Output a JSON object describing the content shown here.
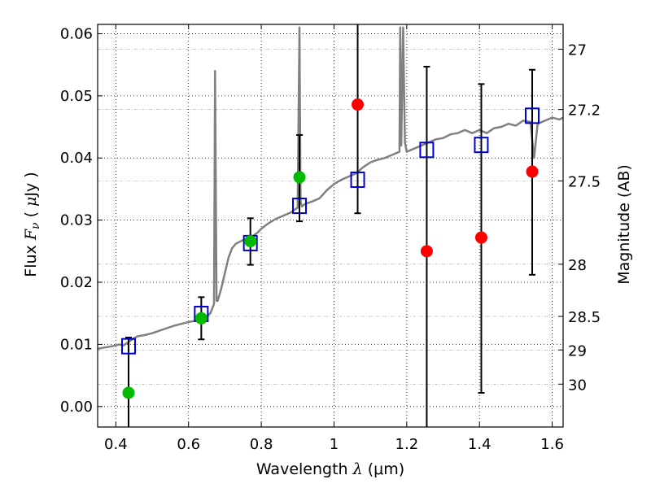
{
  "chart_data": {
    "type": "scatter",
    "title": "",
    "xlabel": "Wavelength  λ (μm)",
    "xlabel_parts": {
      "text": "Wavelength  ",
      "sym": "λ",
      "unit": " (μm)"
    },
    "ylabel": "Flux  Fν ( μJy )",
    "ylabel_parts": {
      "text": "Flux  ",
      "sym": "F",
      "sub": "ν",
      "paren": "  (  ",
      "mu": "μ",
      "unit": "Jy  )"
    },
    "y2label": "Magnitude (AB)",
    "xlim": [
      0.35,
      1.63
    ],
    "ylim": [
      -0.0033,
      0.0615
    ],
    "grid": true,
    "x_ticks": [
      0.4,
      0.6,
      0.8,
      1.0,
      1.2,
      1.4,
      1.6
    ],
    "x_tick_labels": [
      "0.4",
      "0.6",
      "0.8",
      "1",
      "1.2",
      "1.4",
      "1.6"
    ],
    "y_ticks": [
      0.0,
      0.01,
      0.02,
      0.03,
      0.04,
      0.05,
      0.06
    ],
    "y_tick_labels": [
      "0.00",
      "0.01",
      "0.02",
      "0.03",
      "0.04",
      "0.05",
      "0.06"
    ],
    "mag_ticks": [
      {
        "label": "27",
        "flux": 0.0575
      },
      {
        "label": "27.2",
        "flux": 0.0478
      },
      {
        "label": "27.5",
        "flux": 0.0363
      },
      {
        "label": "28",
        "flux": 0.0229
      },
      {
        "label": "28.5",
        "flux": 0.0145
      },
      {
        "label": "29",
        "flux": 0.0091
      },
      {
        "label": "30",
        "flux": 0.0036
      }
    ],
    "series": [
      {
        "kind": "line",
        "color": "#808080",
        "x": [
          0.35,
          0.37,
          0.39,
          0.41,
          0.42,
          0.43,
          0.44,
          0.45,
          0.46,
          0.48,
          0.5,
          0.52,
          0.54,
          0.56,
          0.58,
          0.6,
          0.62,
          0.64,
          0.65,
          0.66,
          0.67,
          0.673,
          0.677,
          0.68,
          0.69,
          0.7,
          0.71,
          0.72,
          0.73,
          0.74,
          0.75,
          0.76,
          0.77,
          0.78,
          0.79,
          0.8,
          0.82,
          0.84,
          0.86,
          0.88,
          0.9,
          0.905,
          0.908,
          0.912,
          0.92,
          0.94,
          0.96,
          0.98,
          1.0,
          1.02,
          1.04,
          1.06,
          1.08,
          1.1,
          1.12,
          1.14,
          1.16,
          1.18,
          1.182,
          1.185,
          1.19,
          1.195,
          1.2,
          1.22,
          1.24,
          1.26,
          1.28,
          1.3,
          1.32,
          1.34,
          1.36,
          1.38,
          1.4,
          1.42,
          1.44,
          1.46,
          1.48,
          1.5,
          1.52,
          1.54,
          1.55,
          1.56,
          1.58,
          1.6,
          1.62,
          1.63
        ],
        "y": [
          0.0093,
          0.0095,
          0.0097,
          0.01,
          0.0098,
          0.0102,
          0.0106,
          0.011,
          0.0113,
          0.0115,
          0.0118,
          0.0122,
          0.0126,
          0.013,
          0.0133,
          0.0136,
          0.0138,
          0.014,
          0.0145,
          0.015,
          0.0165,
          0.054,
          0.017,
          0.017,
          0.019,
          0.0215,
          0.024,
          0.0255,
          0.0262,
          0.0265,
          0.0268,
          0.027,
          0.0272,
          0.0276,
          0.028,
          0.0286,
          0.0295,
          0.0302,
          0.0307,
          0.0312,
          0.032,
          0.061,
          0.033,
          0.0322,
          0.0326,
          0.033,
          0.0335,
          0.0348,
          0.0358,
          0.0365,
          0.037,
          0.0375,
          0.0385,
          0.0393,
          0.0397,
          0.04,
          0.0405,
          0.041,
          0.061,
          0.042,
          0.061,
          0.0425,
          0.041,
          0.0415,
          0.042,
          0.0425,
          0.043,
          0.0432,
          0.0438,
          0.044,
          0.0445,
          0.044,
          0.0445,
          0.044,
          0.0448,
          0.045,
          0.0455,
          0.0452,
          0.046,
          0.0458,
          0.04,
          0.0455,
          0.046,
          0.0465,
          0.0462,
          0.0465
        ]
      },
      {
        "kind": "model-squares",
        "color": "#0000cc",
        "points": [
          [
            0.435,
            0.0097
          ],
          [
            0.635,
            0.0149
          ],
          [
            0.77,
            0.0263
          ],
          [
            0.905,
            0.0323
          ],
          [
            1.065,
            0.0365
          ],
          [
            1.255,
            0.0413
          ],
          [
            1.405,
            0.0421
          ],
          [
            1.545,
            0.0468
          ]
        ]
      },
      {
        "kind": "detections",
        "color": "#00bb00",
        "points": [
          [
            0.435,
            0.0022
          ],
          [
            0.635,
            0.0142
          ],
          [
            0.77,
            0.0266
          ],
          [
            0.905,
            0.0369
          ]
        ]
      },
      {
        "kind": "non-detections",
        "color": "#ff0000",
        "points": [
          [
            1.065,
            0.0486
          ],
          [
            1.255,
            0.025
          ],
          [
            1.405,
            0.0272
          ],
          [
            1.545,
            0.0378
          ]
        ]
      },
      {
        "kind": "errorbars",
        "color": "#000000",
        "bars": [
          {
            "x": 0.435,
            "lo": -0.0033,
            "hi": 0.0111
          },
          {
            "x": 0.635,
            "lo": 0.0108,
            "hi": 0.0176
          },
          {
            "x": 0.77,
            "lo": 0.0228,
            "hi": 0.0303
          },
          {
            "x": 0.905,
            "lo": 0.0298,
            "hi": 0.0437
          },
          {
            "x": 1.065,
            "lo": 0.0311,
            "hi": 0.0615
          },
          {
            "x": 1.255,
            "lo": -0.0033,
            "hi": 0.0547
          },
          {
            "x": 1.405,
            "lo": 0.0022,
            "hi": 0.0519
          },
          {
            "x": 1.545,
            "lo": 0.0212,
            "hi": 0.0542
          }
        ]
      }
    ]
  }
}
